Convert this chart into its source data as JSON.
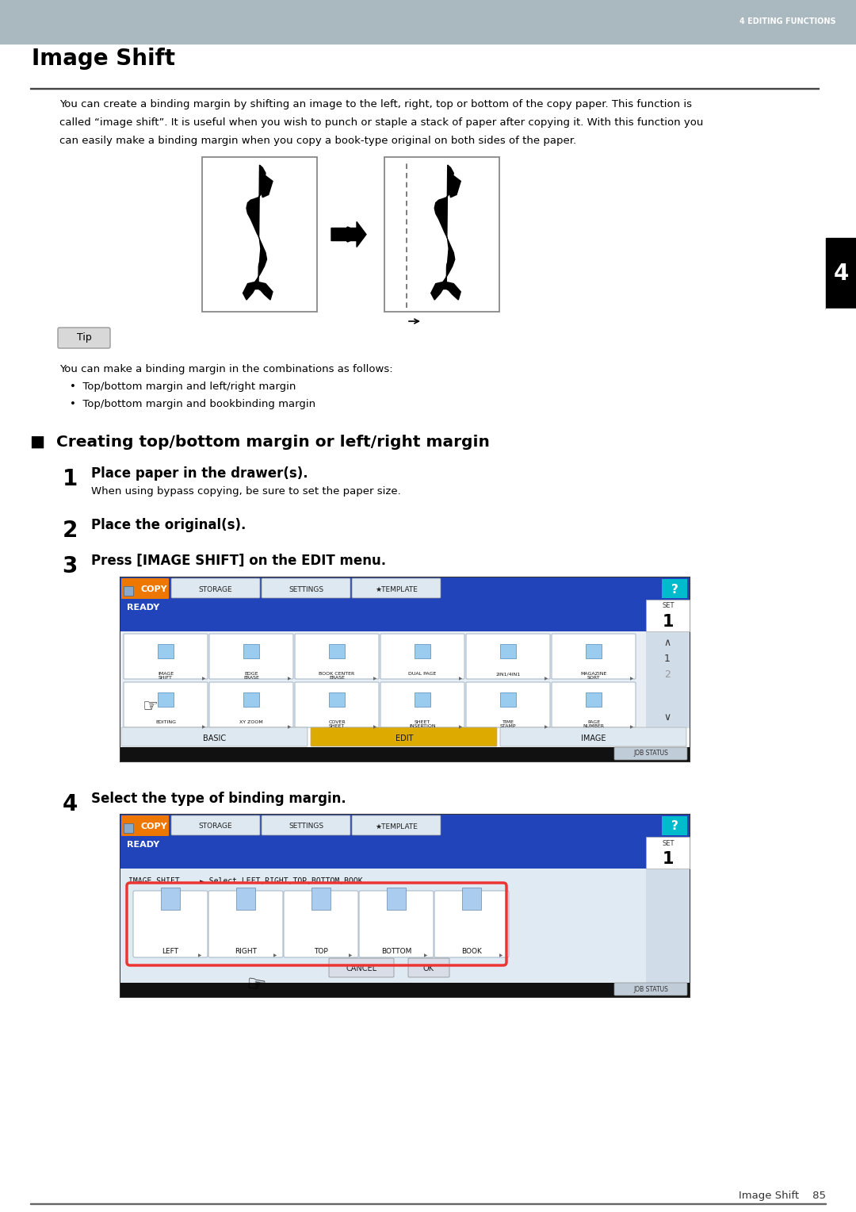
{
  "page_bg": "#ffffff",
  "header_bg": "#aab8bf",
  "header_text": "4 EDITING FUNCTIONS",
  "header_text_color": "#ffffff",
  "title": "Image Shift",
  "body_text_line1": "You can create a binding margin by shifting an image to the left, right, top or bottom of the copy paper. This function is",
  "body_text_line2": "called “image shift”. It is useful when you wish to punch or staple a stack of paper after copying it. With this function you",
  "body_text_line3": "can easily make a binding margin when you copy a book-type original on both sides of the paper.",
  "tip_label": "Tip",
  "tip_text_line1": "You can make a binding margin in the combinations as follows:",
  "tip_bullet1": "•  Top/bottom margin and left/right margin",
  "tip_bullet2": "•  Top/bottom margin and bookbinding margin",
  "section_title": "■  Creating top/bottom margin or left/right margin",
  "step1_num": "1",
  "step1_bold": "Place paper in the drawer(s).",
  "step1_text": "When using bypass copying, be sure to set the paper size.",
  "step2_num": "2",
  "step2_bold": "Place the original(s).",
  "step3_num": "3",
  "step3_bold": "Press [IMAGE SHIFT] on the EDIT menu.",
  "step4_num": "4",
  "step4_bold": "Select the type of binding margin.",
  "footer_text": "Image Shift    85",
  "side_tab_num": "4",
  "side_tab_bg": "#000000",
  "side_tab_text_color": "#ffffff",
  "scr_bg": "#c5d5e5",
  "scr_header_blue": "#2244bb",
  "scr_orange": "#ee7700",
  "scr_icon_bg": "#dce8f0",
  "scr_icon_border": "#aabbcc",
  "scr_tab_light": "#dde8f0",
  "scr_bottom_bar": "#111111",
  "scr_edit_orange": "#ddaa00",
  "scr_jobstatus_bg": "#c0ccd8"
}
